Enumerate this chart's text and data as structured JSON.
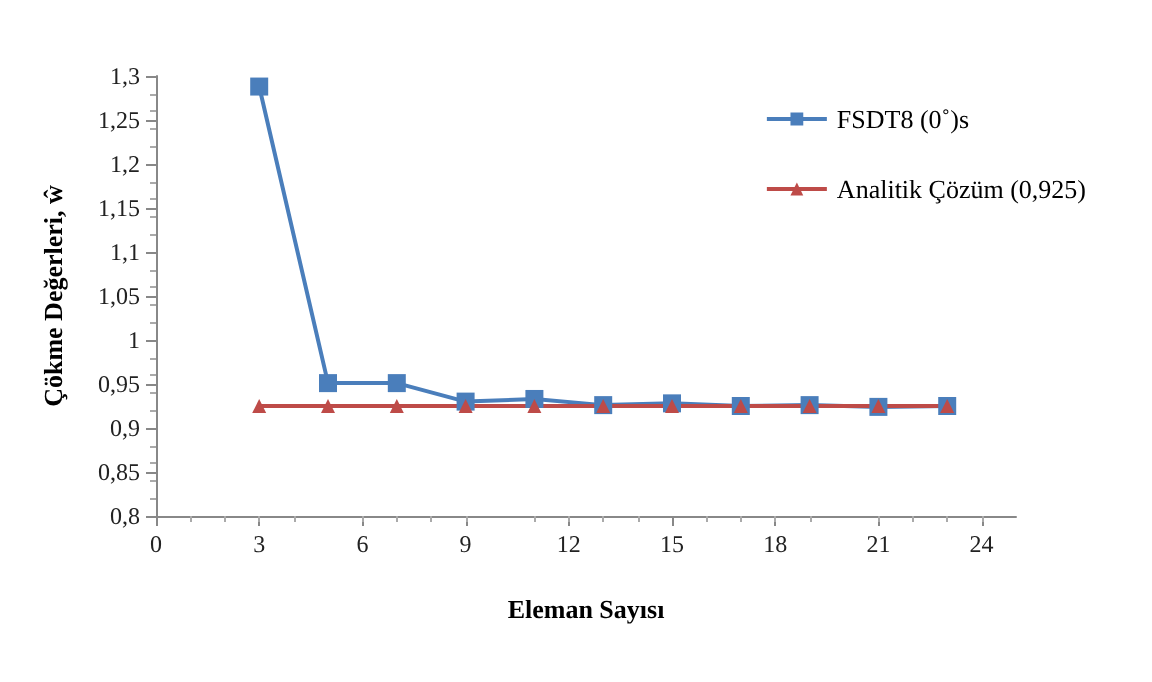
{
  "chart_data": {
    "type": "line",
    "xlabel": "Eleman Sayısı",
    "ylabel": "Çökme Değerleri, ŵ",
    "xlim": [
      0,
      25
    ],
    "xticks": [
      0,
      3,
      6,
      9,
      12,
      15,
      18,
      21,
      24
    ],
    "ylim": [
      0.8,
      1.3
    ],
    "yticks": [
      {
        "value": 0.8,
        "label": "0,8"
      },
      {
        "value": 0.85,
        "label": "0,85"
      },
      {
        "value": 0.9,
        "label": "0,9"
      },
      {
        "value": 0.95,
        "label": "0,95"
      },
      {
        "value": 1,
        "label": "1"
      },
      {
        "value": 1.05,
        "label": "1,05"
      },
      {
        "value": 1.1,
        "label": "1,1"
      },
      {
        "value": 1.15,
        "label": "1,15"
      },
      {
        "value": 1.2,
        "label": "1,2"
      },
      {
        "value": 1.25,
        "label": "1,25"
      },
      {
        "value": 1.3,
        "label": "1,3"
      }
    ],
    "grid": false,
    "legend": "top right",
    "x": [
      3,
      5,
      7,
      9,
      11,
      13,
      15,
      17,
      19,
      21,
      23
    ],
    "series": [
      {
        "name": "FSDT8 (0˚)s",
        "color": "#4a7ebb",
        "marker": "square",
        "values": [
          1.288,
          0.951,
          0.951,
          0.93,
          0.933,
          0.926,
          0.928,
          0.925,
          0.926,
          0.924,
          0.925
        ]
      },
      {
        "name": "Analitik Çözüm (0,925)",
        "color": "#be4b48",
        "marker": "triangle",
        "values": [
          0.925,
          0.925,
          0.925,
          0.925,
          0.925,
          0.925,
          0.925,
          0.925,
          0.925,
          0.925,
          0.925
        ]
      }
    ]
  }
}
